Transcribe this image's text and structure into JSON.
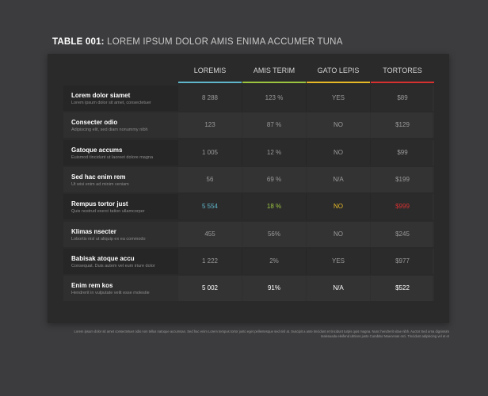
{
  "title": {
    "prefix": "TABLE 001:",
    "text": "LOREM IPSUM DOLOR AMIS ENIMA ACCUMER TUNA"
  },
  "columns": [
    {
      "label": "LOREMIS",
      "color": "#5fb5c9"
    },
    {
      "label": "AMIS TERIM",
      "color": "#9cc43f"
    },
    {
      "label": "GATO LEPIS",
      "color": "#e7b927"
    },
    {
      "label": "TORTORES",
      "color": "#d6312f"
    }
  ],
  "rows": [
    {
      "title": "Lorem dolor siamet",
      "subtitle": "Lorem ipsum dolor sit amet, consectetuer",
      "values": [
        "8 288",
        "123 %",
        "YES",
        "$89"
      ]
    },
    {
      "title": "Consecter odio",
      "subtitle": "Adipiscing elit, sed diam nonummy nibh",
      "values": [
        "123",
        "87 %",
        "NO",
        "$129"
      ]
    },
    {
      "title": "Gatoque accums",
      "subtitle": "Euismod tincidunt ut laoreet dolore magna",
      "values": [
        "1 005",
        "12 %",
        "NO",
        "$99"
      ]
    },
    {
      "title": "Sed hac enim rem",
      "subtitle": "Ut wisi enim ad minim veniam",
      "values": [
        "56",
        "69 %",
        "N/A",
        "$199"
      ]
    },
    {
      "title": "Rempus tortor just",
      "subtitle": "Quis nostrud exerci tation ullamcorper",
      "values": [
        "5 554",
        "18 %",
        "NO",
        "$999"
      ]
    },
    {
      "title": "Klimas nsecter",
      "subtitle": "Lobortis nisl ut aliquip ex ea commodo",
      "values": [
        "455",
        "56%",
        "NO",
        "$245"
      ]
    },
    {
      "title": "Babisak atoque accu",
      "subtitle": "Consequat. Duis autem vel eum iriure dolor",
      "values": [
        "1 222",
        "2%",
        "YES",
        "$977"
      ]
    },
    {
      "title": "Enim rem kos",
      "subtitle": "Hendrerit in vulputate velit esse molestie",
      "values": [
        "5 002",
        "91%",
        "N/A",
        "$522"
      ]
    }
  ],
  "highlight_colors": [
    "#5fb5c9",
    "#9cc43f",
    "#e7b927",
    "#d6312f"
  ],
  "footnote": "Lorem ipsum dolor sit amet consectetuer odio non tellus natoque accumsan. Sed hac enim Lorem tempus tortor justo eget pellentesque sed nisl at. Suscipit a ante tincidunt et tincidunt turpis quis magna. Nunc hendrerit vitae nibh. Auctor Sed urna dignissim malesuada eleifend ultrices justo Curabitur Maecenas orci. Tincidunt adipiscing vel et et"
}
